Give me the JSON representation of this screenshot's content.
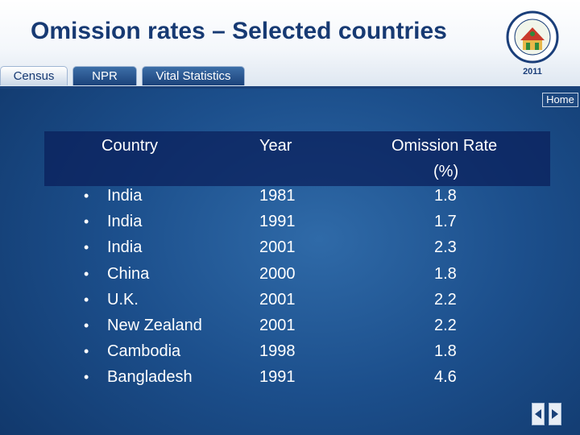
{
  "header": {
    "title": "Omission rates – Selected countries",
    "logo_year": "2011"
  },
  "tabs": [
    {
      "label": "Census",
      "active": true
    },
    {
      "label": "NPR",
      "active": false
    },
    {
      "label": "Vital Statistics",
      "active": false
    }
  ],
  "home_label": "Home",
  "table": {
    "columns": [
      "Country",
      "Year",
      "Omission Rate (%)"
    ],
    "omission_head_line1": "Omission Rate",
    "omission_head_line2": "(%)",
    "rows": [
      {
        "country": "India",
        "year": "1981",
        "rate": "1.8"
      },
      {
        "country": "India",
        "year": "1991",
        "rate": "1.7"
      },
      {
        "country": "India",
        "year": "2001",
        "rate": "2.3"
      },
      {
        "country": "China",
        "year": "2000",
        "rate": "1.8"
      },
      {
        "country": "U.K.",
        "year": "2001",
        "rate": "2.2"
      },
      {
        "country": "New Zealand",
        "year": "2001",
        "rate": "2.2"
      },
      {
        "country": "Cambodia",
        "year": "1998",
        "rate": "1.8"
      },
      {
        "country": "Bangladesh",
        "year": "1991",
        "rate": "4.6"
      }
    ]
  },
  "colors": {
    "title": "#173a73",
    "background": "#1c4f8c"
  }
}
